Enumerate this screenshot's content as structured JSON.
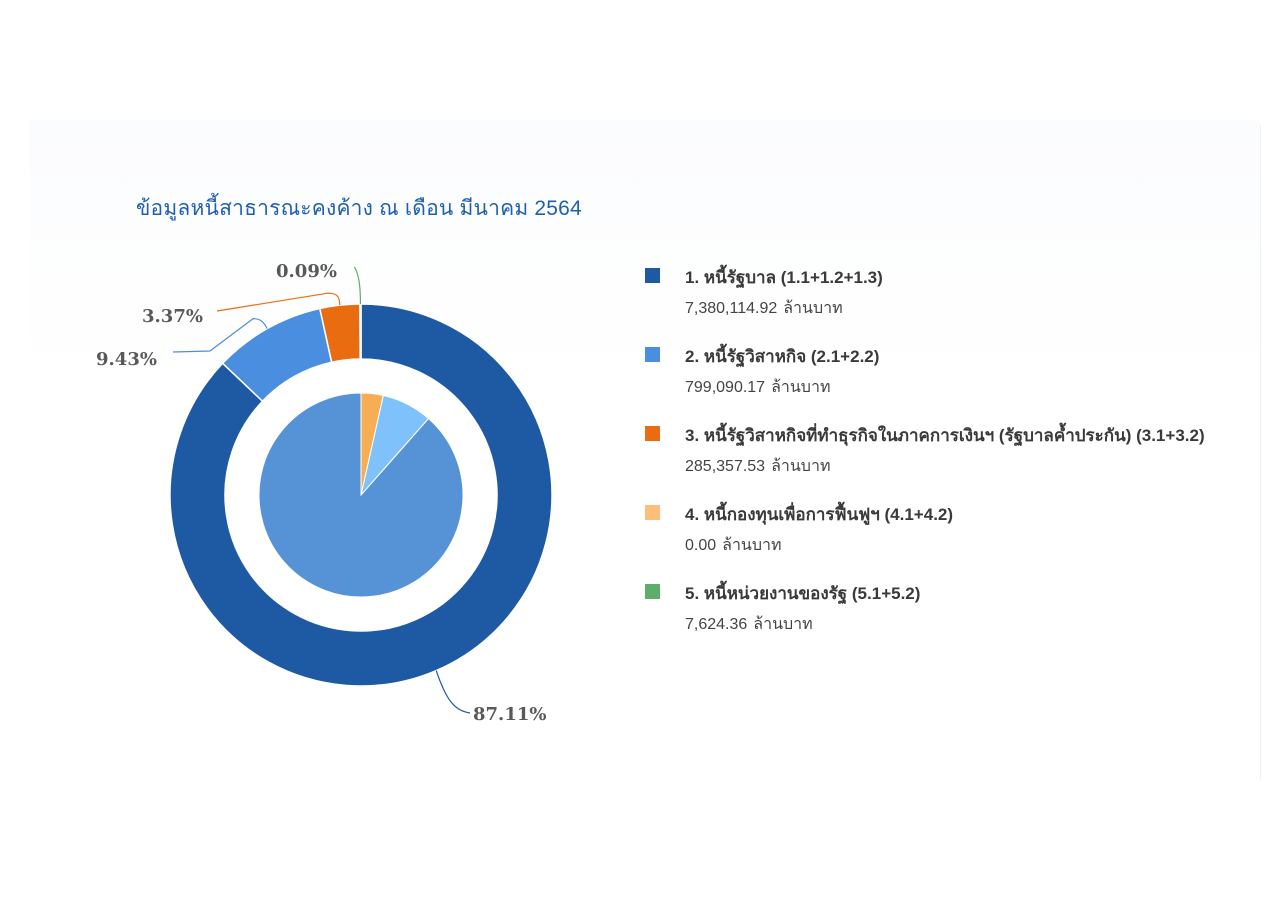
{
  "chart_data": {
    "type": "pie",
    "title": "ข้อมูลหนี้สาธารณะคงค้าง ณ เดือน มีนาคม 2564",
    "outer_ring": {
      "slices": [
        {
          "label": "1. หนี้รัฐบาล (1.1+1.2+1.3)",
          "percent": 87.11,
          "percent_label": "87.11%",
          "color": "#1d5aa3"
        },
        {
          "label": "2. หนี้รัฐวิสาหกิจ (2.1+2.2)",
          "percent": 9.43,
          "percent_label": "9.43%",
          "color": "#4a8fdf"
        },
        {
          "label": "3. หนี้รัฐวิสาหกิจที่ทำธุรกิจในภาคการเงินฯ (รัฐบาลค้ำประกัน) (3.1+3.2)",
          "percent": 3.37,
          "percent_label": "3.37%",
          "color": "#ea6c10"
        },
        {
          "label": "5. หนี้หน่วยงานของรัฐ (5.1+5.2)",
          "percent": 0.09,
          "percent_label": "0.09%",
          "color": "#5fad6a"
        }
      ]
    },
    "inner_pie": {
      "slices": [
        {
          "percent": 88.5,
          "color": "#5592d6"
        },
        {
          "percent": 8.0,
          "color": "#7fc1fb"
        },
        {
          "percent": 3.5,
          "color": "#f6ad54"
        }
      ]
    },
    "legend": [
      {
        "label": "1. หนี้รัฐบาล (1.1+1.2+1.3)",
        "value": "7,380,114.92",
        "unit": "ล้านบาท",
        "color": "#1d5aa3"
      },
      {
        "label": "2. หนี้รัฐวิสาหกิจ (2.1+2.2)",
        "value": "799,090.17",
        "unit": "ล้านบาท",
        "color": "#4a8fdf"
      },
      {
        "label": "3. หนี้รัฐวิสาหกิจที่ทำธุรกิจในภาคการเงินฯ (รัฐบาลค้ำประกัน) (3.1+3.2)",
        "value": "285,357.53",
        "unit": "ล้านบาท",
        "color": "#ea6c10"
      },
      {
        "label": "4. หนี้กองทุนเพื่อการฟื้นฟูฯ (4.1+4.2)",
        "value": "0.00",
        "unit": "ล้านบาท",
        "color": "#fbbf79"
      },
      {
        "label": "5. หนี้หน่วยงานของรัฐ (5.1+5.2)",
        "value": "7,624.36",
        "unit": "ล้านบาท",
        "color": "#5fad6a"
      }
    ],
    "legend_position": "right"
  }
}
